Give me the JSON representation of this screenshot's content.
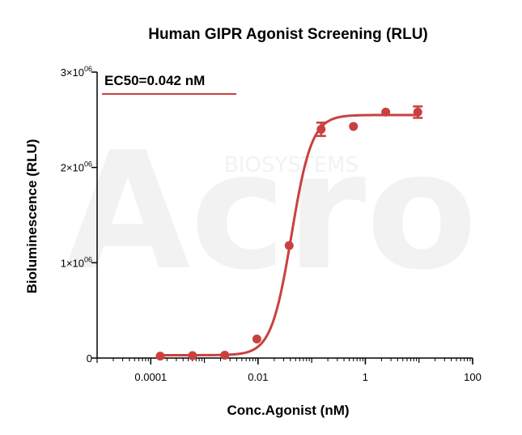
{
  "chart_data": {
    "type": "scatter",
    "title": "Human GIPR Agonist Screening (RLU)",
    "xlabel": "Conc.Agonist (nM)",
    "ylabel": "Bioluminescence (RLU)",
    "x_scale": "log",
    "xlim": [
      1e-05,
      100
    ],
    "ylim": [
      0,
      3000000
    ],
    "x_ticks": [
      {
        "value": 0.0001,
        "label": "0.0001"
      },
      {
        "value": 0.01,
        "label": "0.01"
      },
      {
        "value": 1,
        "label": "1"
      },
      {
        "value": 100,
        "label": "100"
      }
    ],
    "y_ticks": [
      {
        "value": 0,
        "mantissa": "0",
        "exponent": ""
      },
      {
        "value": 1000000,
        "mantissa": "1×10",
        "exponent": "06"
      },
      {
        "value": 2000000,
        "mantissa": "2×10",
        "exponent": "06"
      },
      {
        "value": 3000000,
        "mantissa": "3×10",
        "exponent": "06"
      }
    ],
    "series": [
      {
        "color": "#c9413f",
        "points": [
          {
            "x": 0.00015,
            "y": 20000,
            "err": 0
          },
          {
            "x": 0.0006,
            "y": 25000,
            "err": 0
          },
          {
            "x": 0.0024,
            "y": 30000,
            "err": 0
          },
          {
            "x": 0.0095,
            "y": 200000,
            "err": 0
          },
          {
            "x": 0.038,
            "y": 1180000,
            "err": 0
          },
          {
            "x": 0.15,
            "y": 2400000,
            "err": 70000
          },
          {
            "x": 0.6,
            "y": 2430000,
            "err": 0
          },
          {
            "x": 2.4,
            "y": 2580000,
            "err": 0
          },
          {
            "x": 9.5,
            "y": 2580000,
            "err": 60000
          }
        ],
        "fit": {
          "model": "4PL",
          "bottom": 30000,
          "top": 2550000,
          "ec50": 0.042,
          "hill": 2.3
        }
      }
    ],
    "annotation": {
      "text": "EC50=0.042 nM",
      "color": "#c9413f"
    },
    "watermark": {
      "main": "Acro",
      "sub": "BIOSYSTEMS"
    },
    "grid": false,
    "legend": "none"
  }
}
